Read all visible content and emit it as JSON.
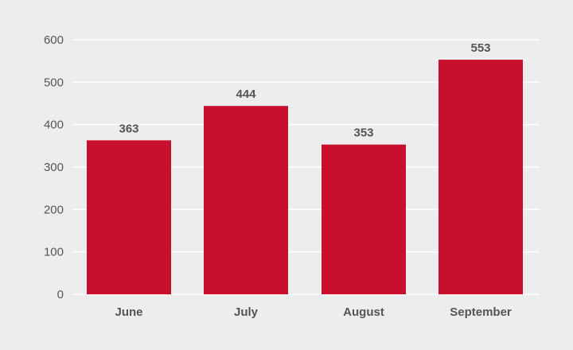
{
  "chart_data": {
    "type": "bar",
    "categories": [
      "June",
      "July",
      "August",
      "September"
    ],
    "values": [
      363,
      444,
      353,
      553
    ],
    "data_labels": [
      "363",
      "444",
      "353",
      "553"
    ],
    "yticks": [
      "0",
      "100",
      "200",
      "300",
      "400",
      "500",
      "600"
    ],
    "ylim": [
      0,
      600
    ],
    "grid": true,
    "legend": "none",
    "title": "",
    "xlabel": "",
    "ylabel": "",
    "colors": {
      "bar": "#c8102e",
      "background": "#ededed",
      "grid": "#ffffff",
      "text": "#555555"
    }
  }
}
